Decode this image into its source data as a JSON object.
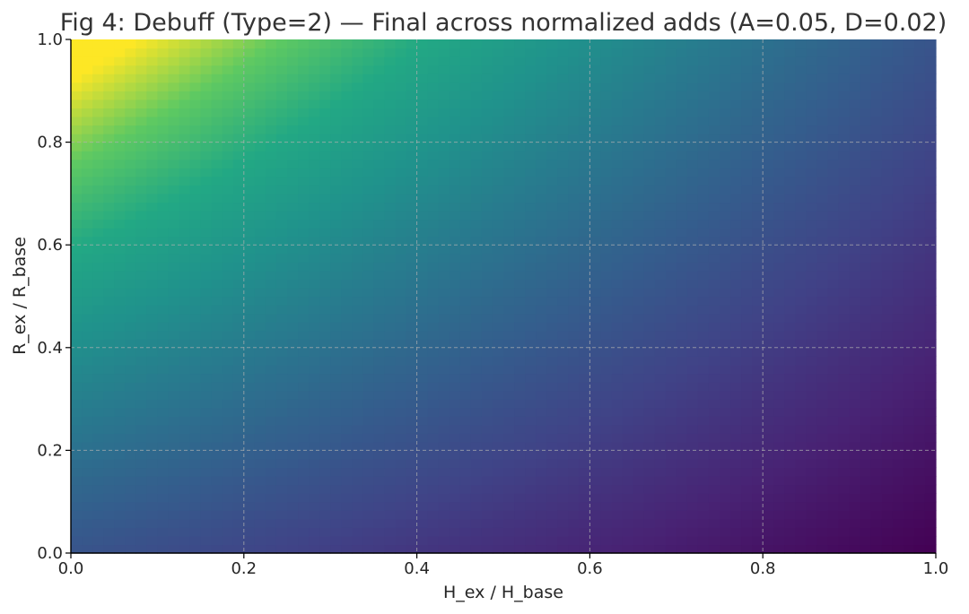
{
  "chart_data": {
    "type": "heatmap",
    "title": "Fig 4: Debuff (Type=2) — Final across normalized adds (A=0.05, D=0.02)",
    "xlabel": "H_ex / H_base",
    "ylabel": "R_ex / R_base",
    "xlim": [
      0.0,
      1.0
    ],
    "ylim": [
      0.0,
      1.0
    ],
    "x_ticks": [
      0.0,
      0.2,
      0.4,
      0.6,
      0.8,
      1.0
    ],
    "y_ticks": [
      0.0,
      0.2,
      0.4,
      0.6,
      0.8,
      1.0
    ],
    "x_tick_labels": [
      "0.0",
      "0.2",
      "0.4",
      "0.6",
      "0.8",
      "1.0"
    ],
    "y_tick_labels": [
      "0.0",
      "0.2",
      "0.4",
      "0.6",
      "0.8",
      "1.0"
    ],
    "grid": true,
    "colormap": "viridis",
    "colorbar": false,
    "value_model": "relative intensity increases toward top-left (low H_ex/H_base, high R_ex/R_base) and decreases toward bottom-right",
    "corner_values": {
      "x0_y0": 0.33,
      "x1_y0": 0.0,
      "x0_y1": 1.0,
      "x1_y1": 0.33
    }
  },
  "colors": {
    "title": "#333333",
    "text": "#262626",
    "axis": "#000000",
    "grid": "#b0b0b0"
  }
}
